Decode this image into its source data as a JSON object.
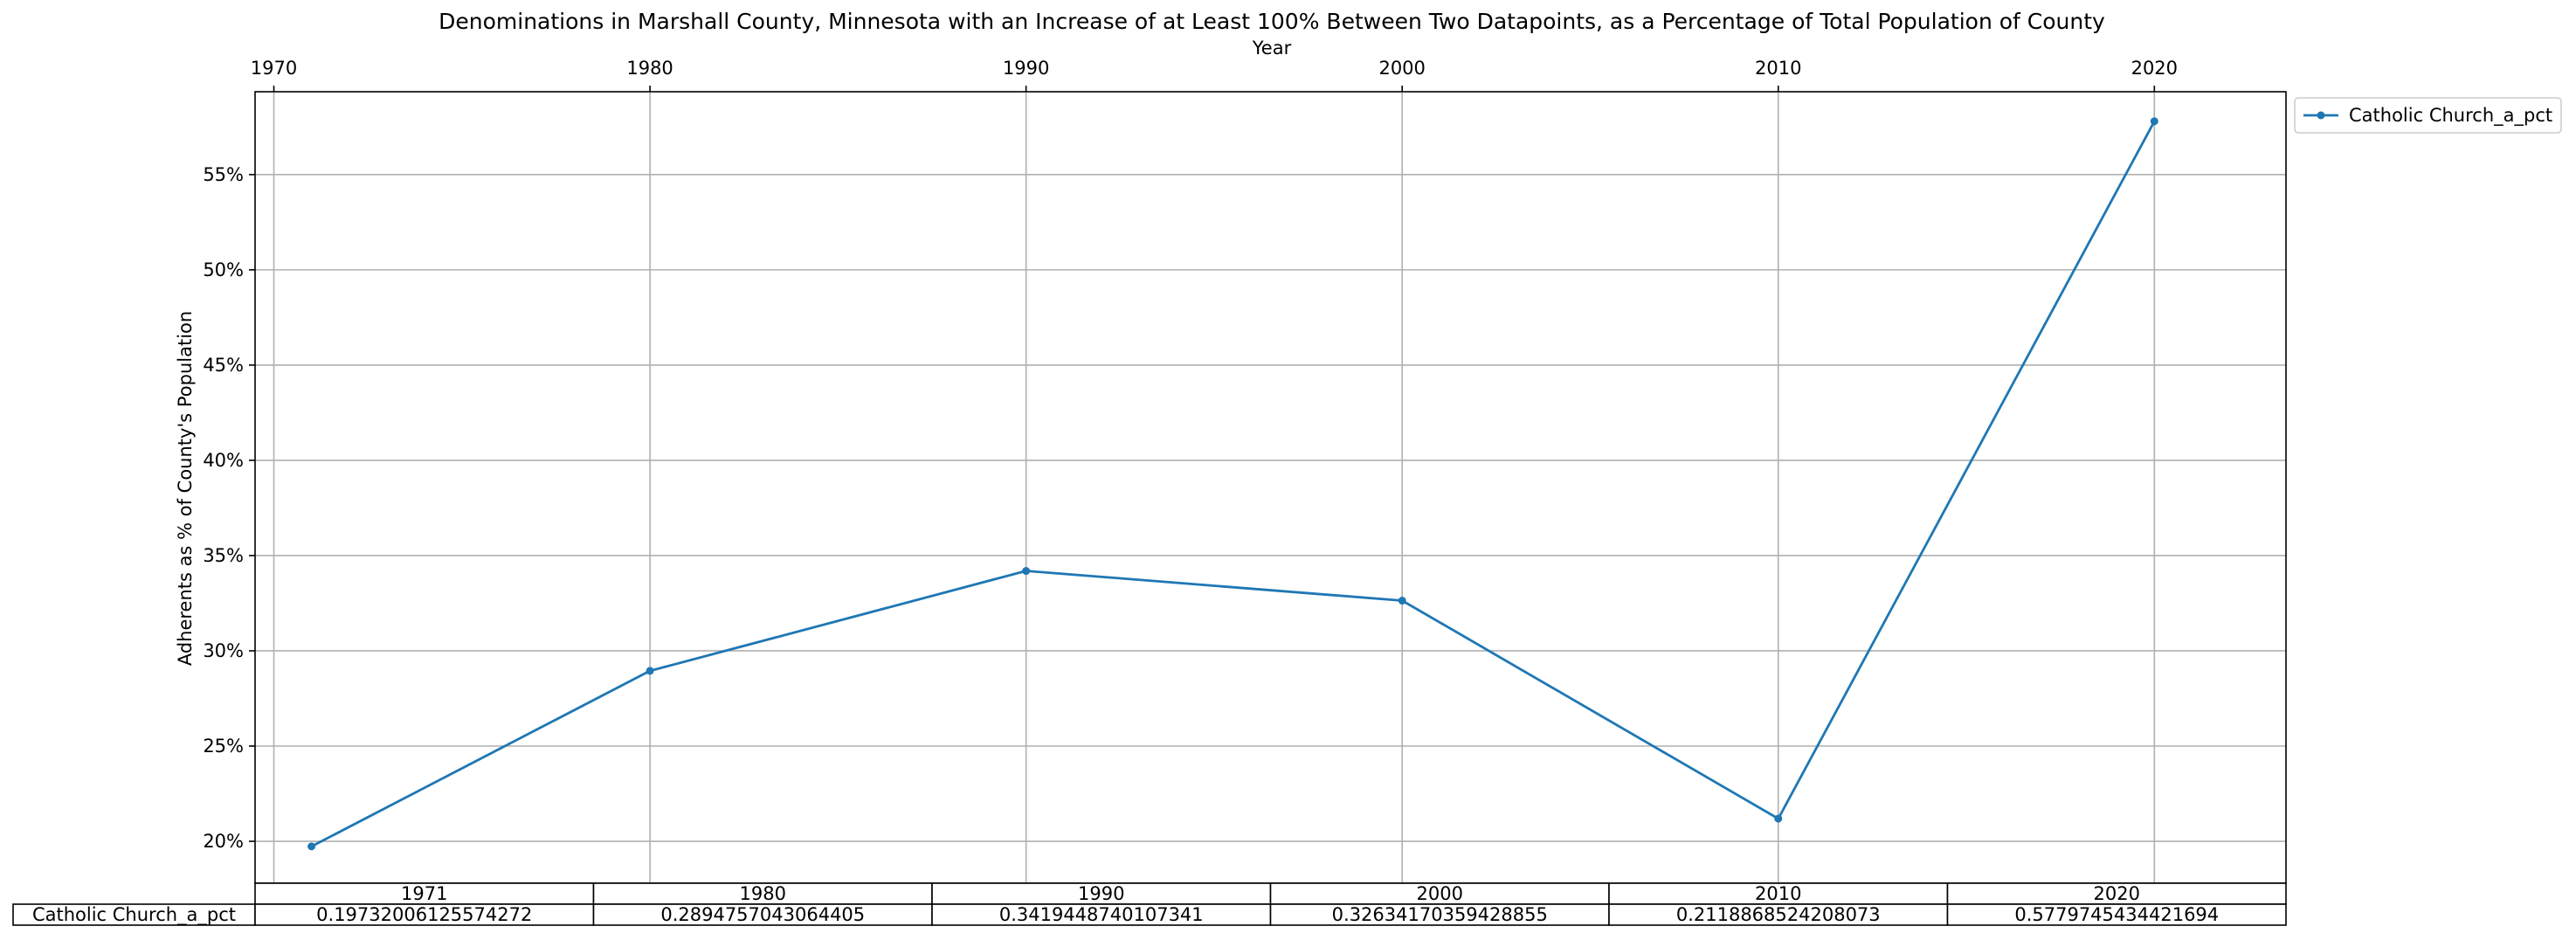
{
  "chart_data": {
    "type": "line",
    "title": "Denominations in Marshall County, Minnesota with an Increase of at Least 100% Between Two Datapoints, as a Percentage of Total Population of County",
    "xlabel": "Year",
    "ylabel": "Adherents as % of County's Population",
    "x": [
      1971,
      1980,
      1990,
      2000,
      2010,
      2020
    ],
    "xlim": [
      1969.5,
      2023.5
    ],
    "xticks": [
      1970,
      1980,
      1990,
      2000,
      2010,
      2020
    ],
    "ylim": [
      0.178,
      0.5935
    ],
    "yticks": [
      0.2,
      0.25,
      0.3,
      0.35,
      0.4,
      0.45,
      0.5,
      0.55
    ],
    "ytick_labels": [
      "20%",
      "25%",
      "30%",
      "35%",
      "40%",
      "45%",
      "50%",
      "55%"
    ],
    "grid": true,
    "legend_position": "outside-top-right",
    "series": [
      {
        "name": "Catholic Church_a_pct",
        "color": "#1f77b4",
        "values": [
          0.19732006125574272,
          0.2894757043064405,
          0.3419448740107341,
          0.32634170359428855,
          0.2118868524208073,
          0.5779745434421694
        ]
      }
    ],
    "table": {
      "col_labels": [
        "1971",
        "1980",
        "1990",
        "2000",
        "2010",
        "2020"
      ],
      "row_label": "Catholic Church_a_pct",
      "cells": [
        "0.19732006125574272",
        "0.2894757043064405",
        "0.3419448740107341",
        "0.32634170359428855",
        "0.2118868524208073",
        "0.5779745434421694"
      ]
    }
  }
}
